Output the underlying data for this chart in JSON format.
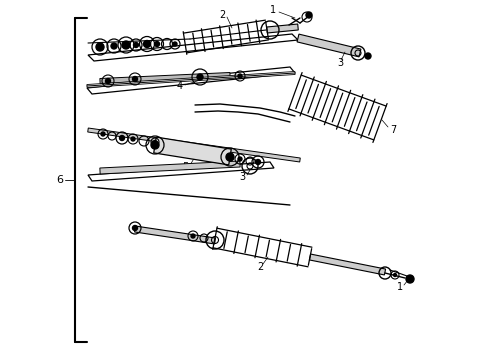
{
  "bg_color": "#ffffff",
  "line_color": "#000000",
  "dark_gray": "#333333",
  "mid_gray": "#666666",
  "fig_width": 4.9,
  "fig_height": 3.6,
  "dpi": 100
}
